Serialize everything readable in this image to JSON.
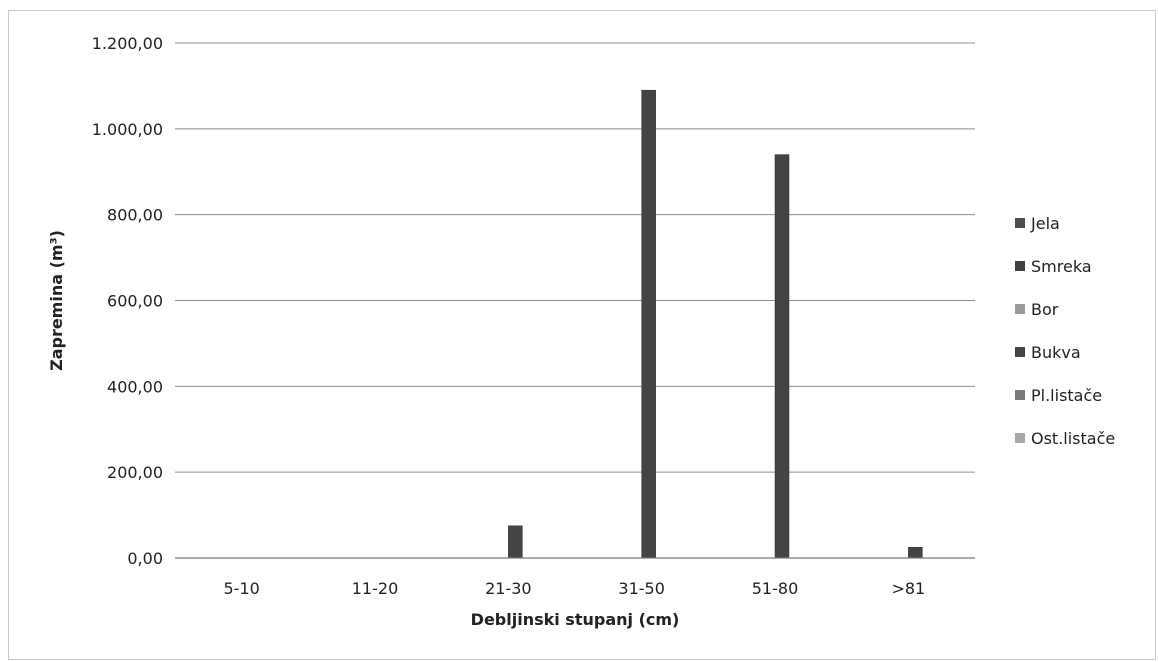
{
  "chart_data": {
    "type": "bar",
    "title": "",
    "xlabel": "Debljinski stupanj (cm)",
    "ylabel": "Zapremina (m³)",
    "ylim": [
      0,
      1200
    ],
    "y_ticks": [
      "0,00",
      "200,00",
      "400,00",
      "600,00",
      "800,00",
      "1.000,00",
      "1.200,00"
    ],
    "y_tick_values": [
      0,
      200,
      400,
      600,
      800,
      1000,
      1200
    ],
    "categories": [
      "5-10",
      "11-20",
      "21-30",
      "31-50",
      "51-80",
      ">81"
    ],
    "series": [
      {
        "name": "Jela",
        "color": "#4d4d4d",
        "values": [
          0,
          0,
          0,
          0,
          0,
          0
        ]
      },
      {
        "name": "Smreka",
        "color": "#404040",
        "values": [
          0,
          0,
          0,
          0,
          0,
          0
        ]
      },
      {
        "name": "Bor",
        "color": "#9a9a9a",
        "values": [
          0,
          0,
          0,
          0,
          0,
          0
        ]
      },
      {
        "name": "Bukva",
        "color": "#444444",
        "values": [
          0,
          0,
          75,
          1090,
          940,
          25
        ]
      },
      {
        "name": "Pl.listače",
        "color": "#7a7a7a",
        "values": [
          0,
          0,
          0,
          0,
          0,
          0
        ]
      },
      {
        "name": "Ost.listače",
        "color": "#a8a8a8",
        "values": [
          0,
          0,
          0,
          0,
          0,
          0
        ]
      }
    ],
    "grid": true,
    "legend_position": "right"
  }
}
